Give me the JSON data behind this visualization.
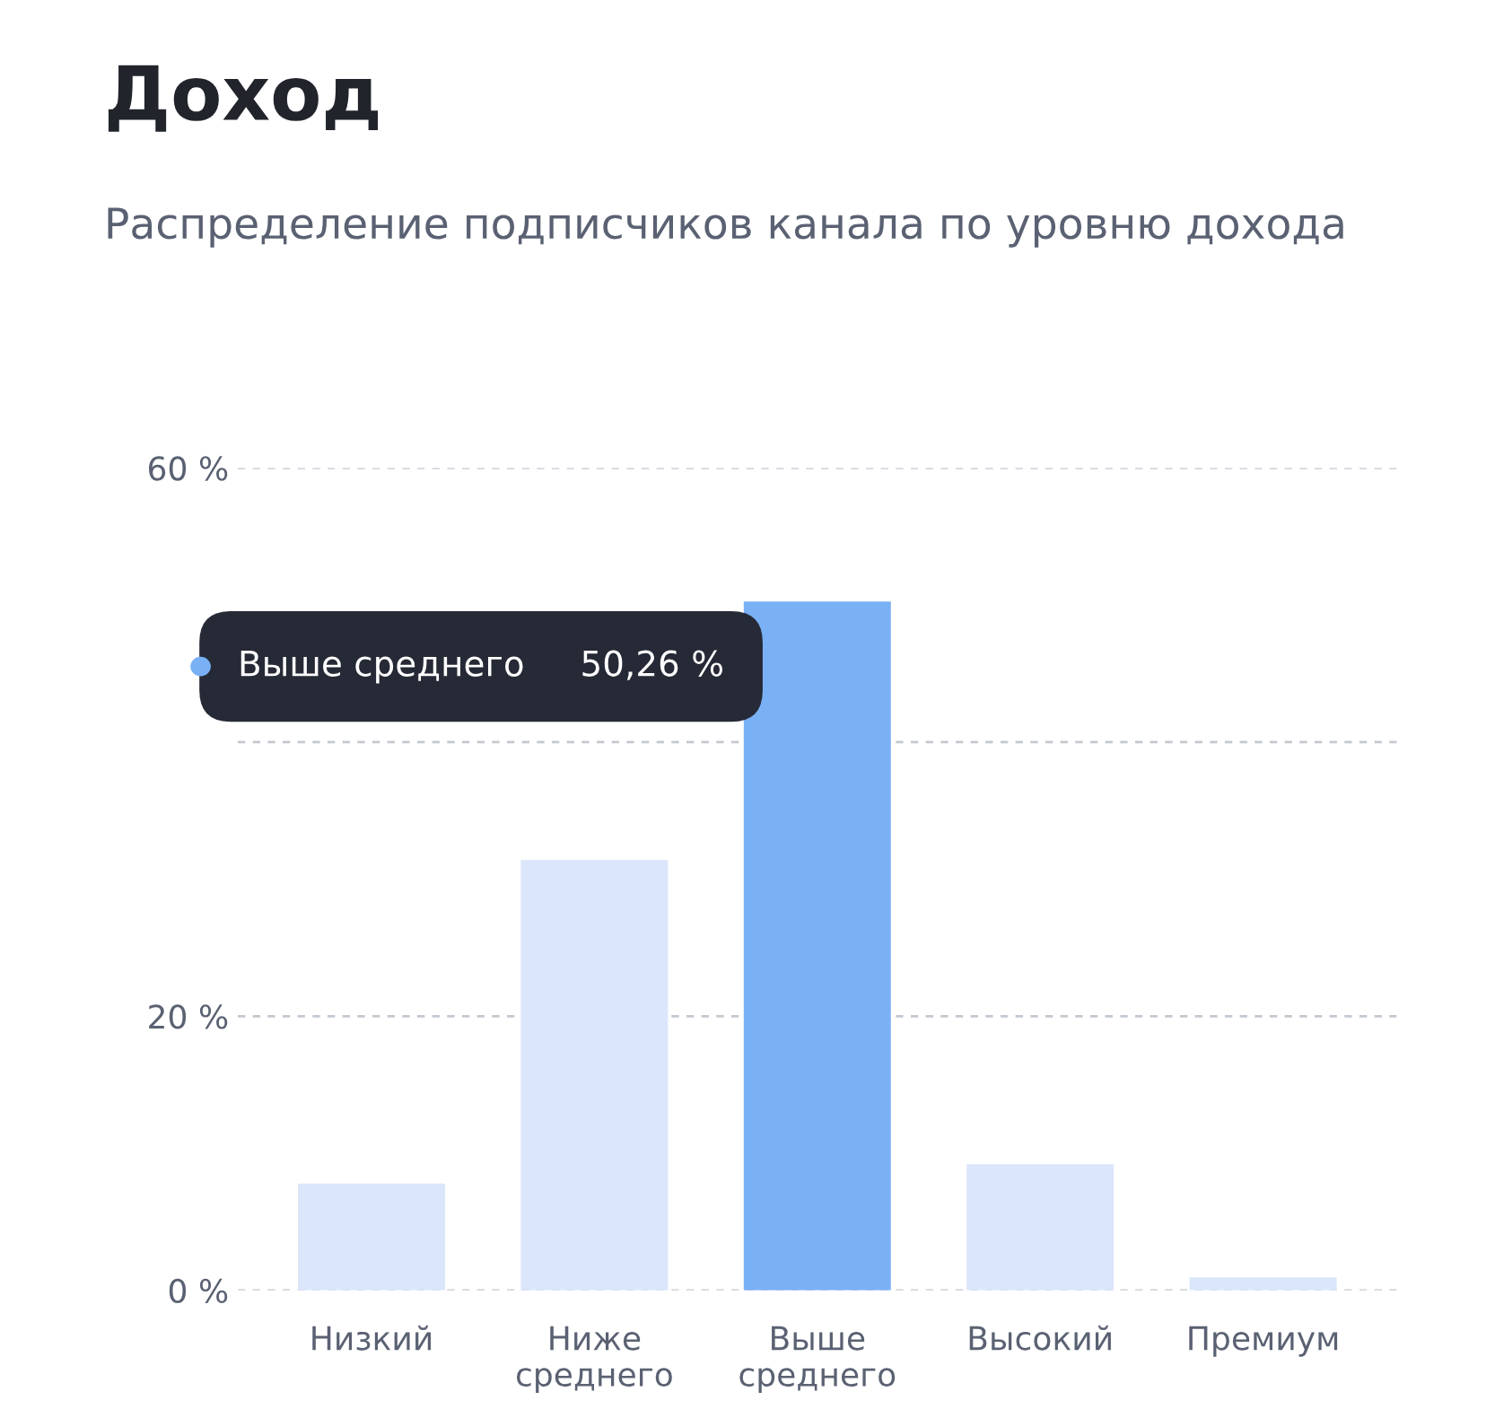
{
  "chart_data": {
    "type": "bar",
    "title": "Доход",
    "subtitle": "Распределение подписчиков канала по уровню дохода",
    "categories": [
      "Низкий",
      "Ниже среднего",
      "Выше среднего",
      "Высокий",
      "Премиум"
    ],
    "values": [
      7.8,
      31.4,
      50.26,
      9.2,
      0.95
    ],
    "colors": [
      "#dbe6fb",
      "#dbe6fb",
      "#7ab1f5",
      "#dbe6fb",
      "#dbe6fb"
    ],
    "ylim": [
      0,
      60
    ],
    "yticks": [
      {
        "value": 0,
        "label": "0 %"
      },
      {
        "value": 20,
        "label": "20 %"
      },
      {
        "value": 40,
        "label": null
      },
      {
        "value": 60,
        "label": "60 %"
      }
    ],
    "grid": "y",
    "annotations": [
      "Выше среднего     50,26 %"
    ]
  }
}
